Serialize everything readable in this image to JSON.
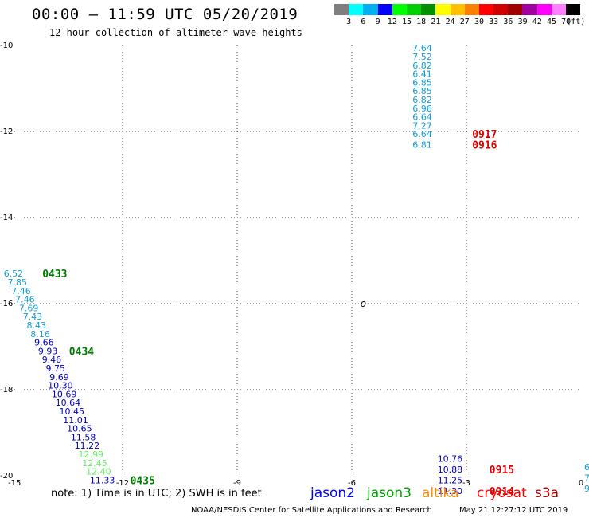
{
  "header": {
    "title": "00:00 – 11:59 UTC 05/20/2019",
    "subtitle": "12 hour collection of altimeter wave heights"
  },
  "color_scale": {
    "colors": [
      "#7f7f7f",
      "#00ffff",
      "#00b0f0",
      "#0000ff",
      "#00ff00",
      "#00d000",
      "#009000",
      "#ffff00",
      "#ffc000",
      "#ff8000",
      "#ff0000",
      "#d00000",
      "#a00000",
      "#a000a0",
      "#ff00ff",
      "#ff80ff",
      "#000000"
    ],
    "labels": [
      "3",
      "6",
      "9",
      "12",
      "15",
      "18",
      "21",
      "24",
      "27",
      "30",
      "33",
      "36",
      "39",
      "42",
      "45",
      "70",
      "(ft)"
    ]
  },
  "chart_data": {
    "type": "scatter",
    "xlim": [
      -15,
      0
    ],
    "ylim": [
      -20,
      -10
    ],
    "x_ticks": [
      "-15",
      "-12",
      "-9",
      "-6",
      "-3",
      "0"
    ],
    "y_ticks": [
      "-10",
      "-12",
      "-14",
      "-16",
      "-18",
      "-20"
    ],
    "grid": true,
    "marker": {
      "x": -5.7,
      "y": -16.0,
      "label": "o"
    },
    "series": [
      {
        "points": [
          {
            "x": -3.9,
            "y": -10.06,
            "v": "7.64",
            "c": "#0fa0d8"
          },
          {
            "x": -3.9,
            "y": -10.26,
            "v": "7.52",
            "c": "#0fa0d8"
          },
          {
            "x": -3.9,
            "y": -10.46,
            "v": "6.82",
            "c": "#0fa0d8"
          },
          {
            "x": -3.9,
            "y": -10.66,
            "v": "6.41",
            "c": "#0fa0d8"
          },
          {
            "x": -3.9,
            "y": -10.86,
            "v": "6.85",
            "c": "#0fa0d8"
          },
          {
            "x": -3.9,
            "y": -11.06,
            "v": "6.85",
            "c": "#0fa0d8"
          },
          {
            "x": -3.9,
            "y": -11.26,
            "v": "6.82",
            "c": "#0fa0d8"
          },
          {
            "x": -3.9,
            "y": -11.46,
            "v": "6.96",
            "c": "#0fa0d8"
          },
          {
            "x": -3.9,
            "y": -11.66,
            "v": "6.64",
            "c": "#0fa0d8"
          },
          {
            "x": -3.9,
            "y": -11.86,
            "v": "7.27",
            "c": "#0fa0d8"
          },
          {
            "x": -3.9,
            "y": -12.06,
            "v": "6.64",
            "c": "#0fa0d8"
          },
          {
            "x": -3.9,
            "y": -12.31,
            "v": "6.81",
            "c": "#0fa0d8"
          }
        ]
      },
      {
        "points": [
          {
            "x": -14.6,
            "y": -15.3,
            "v": "6.52",
            "c": "#0fa0d8"
          },
          {
            "x": -14.5,
            "y": -15.5,
            "v": "7.85",
            "c": "#0fa0d8"
          },
          {
            "x": -14.4,
            "y": -15.7,
            "v": "7.46",
            "c": "#0fa0d8"
          },
          {
            "x": -14.3,
            "y": -15.9,
            "v": "7.46",
            "c": "#0fa0d8"
          },
          {
            "x": -14.2,
            "y": -16.1,
            "v": "7.69",
            "c": "#0fa0d8"
          },
          {
            "x": -14.1,
            "y": -16.3,
            "v": "7.43",
            "c": "#0fa0d8"
          },
          {
            "x": -14.0,
            "y": -16.5,
            "v": "8.43",
            "c": "#0fa0d8"
          },
          {
            "x": -13.9,
            "y": -16.7,
            "v": "8.16",
            "c": "#0fa0d8"
          },
          {
            "x": -13.8,
            "y": -16.9,
            "v": "9.66",
            "c": "#0000c0"
          },
          {
            "x": -13.7,
            "y": -17.1,
            "v": "9.93",
            "c": "#0000c0"
          },
          {
            "x": -13.6,
            "y": -17.3,
            "v": "9.46",
            "c": "#0000c0"
          },
          {
            "x": -13.5,
            "y": -17.5,
            "v": "9.75",
            "c": "#0000c0"
          },
          {
            "x": -13.4,
            "y": -17.7,
            "v": "9.69",
            "c": "#0000c0"
          },
          {
            "x": -13.3,
            "y": -17.9,
            "v": "10.30",
            "c": "#0000c0"
          },
          {
            "x": -13.2,
            "y": -18.1,
            "v": "10.69",
            "c": "#0000c0"
          },
          {
            "x": -13.1,
            "y": -18.3,
            "v": "10.64",
            "c": "#0000c0"
          },
          {
            "x": -13.0,
            "y": -18.5,
            "v": "10.45",
            "c": "#0000c0"
          },
          {
            "x": -12.9,
            "y": -18.7,
            "v": "11.01",
            "c": "#0000c0"
          },
          {
            "x": -12.8,
            "y": -18.9,
            "v": "10.65",
            "c": "#0000c0"
          },
          {
            "x": -12.7,
            "y": -19.1,
            "v": "11.58",
            "c": "#0000c0"
          },
          {
            "x": -12.6,
            "y": -19.3,
            "v": "11.22",
            "c": "#0000c0"
          },
          {
            "x": -12.5,
            "y": -19.5,
            "v": "12.99",
            "c": "#66ee66"
          },
          {
            "x": -12.4,
            "y": -19.7,
            "v": "12.45",
            "c": "#66ee66"
          },
          {
            "x": -12.3,
            "y": -19.9,
            "v": "12.40",
            "c": "#66ee66"
          },
          {
            "x": -12.2,
            "y": -20.1,
            "v": "11.33",
            "c": "#0000c0"
          }
        ]
      },
      {
        "points": [
          {
            "x": -3.1,
            "y": -19.6,
            "v": "10.76",
            "c": "#0000c0"
          },
          {
            "x": -3.1,
            "y": -19.85,
            "v": "10.88",
            "c": "#0000c0"
          },
          {
            "x": -3.1,
            "y": -20.1,
            "v": "11.25",
            "c": "#0000c0"
          },
          {
            "x": -3.1,
            "y": -20.35,
            "v": "11.30",
            "c": "#0000c0"
          }
        ]
      }
    ],
    "time_labels": [
      {
        "x": -14.1,
        "y": -15.3,
        "t": "0433",
        "c": "#007a00"
      },
      {
        "x": -13.4,
        "y": -17.1,
        "t": "0434",
        "c": "#007a00"
      },
      {
        "x": -11.8,
        "y": -20.1,
        "t": "0435",
        "c": "#007a00"
      },
      {
        "x": -2.85,
        "y": -12.06,
        "t": "0917",
        "c": "#e00000"
      },
      {
        "x": -2.85,
        "y": -12.31,
        "t": "0916",
        "c": "#e00000"
      },
      {
        "x": -2.4,
        "y": -19.85,
        "t": "0915",
        "c": "#e00000"
      },
      {
        "x": -2.4,
        "y": -20.35,
        "t": "0914",
        "c": "#e00000"
      }
    ],
    "edge_fragments": [
      {
        "y": -19.8,
        "t": "6"
      },
      {
        "y": -20.05,
        "t": "7"
      },
      {
        "y": -20.3,
        "t": "9"
      }
    ]
  },
  "footer": {
    "note": "note: 1) Time is in UTC; 2) SWH is in feet",
    "satellites": [
      {
        "name": "jason2",
        "color": "#0000ff"
      },
      {
        "name": "jason3",
        "color": "#00a000"
      },
      {
        "name": "altika",
        "color": "#ff8c00"
      },
      {
        "name": "cryosat",
        "color": "#ff0000"
      },
      {
        "name": "s3a",
        "color": "#b00000"
      }
    ],
    "credit": "NOAA/NESDIS Center for Satellite Applications and Research",
    "timestamp": "May 21 12:27:12 UTC 2019"
  }
}
